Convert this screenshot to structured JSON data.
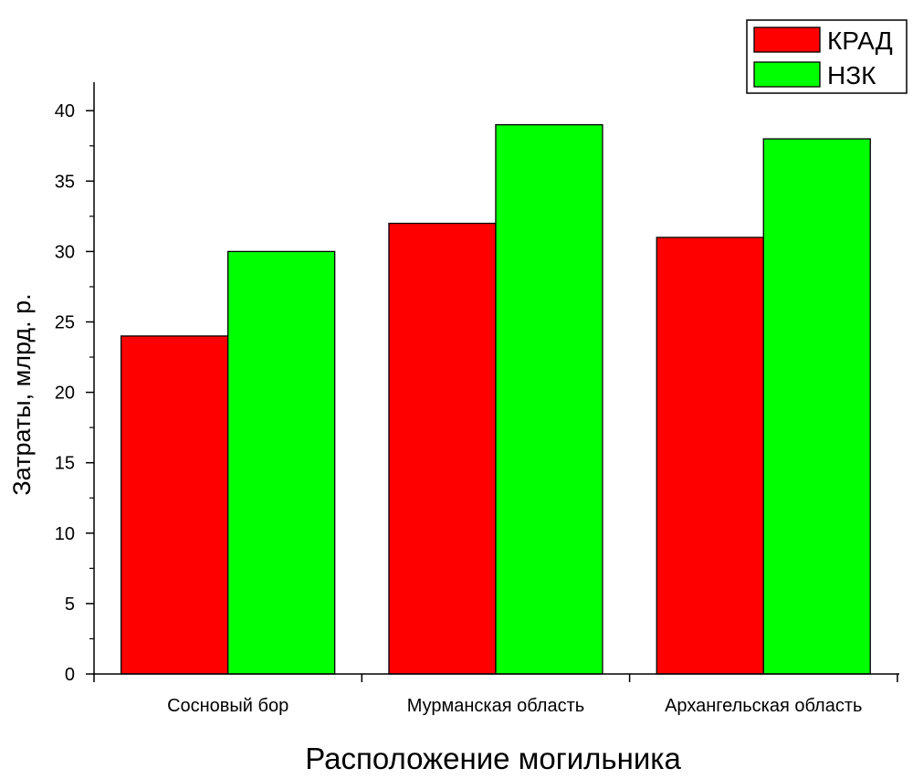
{
  "chart_data": {
    "type": "bar",
    "categories": [
      "Сосновый бор",
      "Мурманская область",
      "Архангельская область"
    ],
    "series": [
      {
        "name": "КРАД",
        "color": "#ff0000",
        "values": [
          24,
          32,
          31
        ]
      },
      {
        "name": "НЗК",
        "color": "#00ff00",
        "values": [
          30,
          39,
          38
        ]
      }
    ],
    "xlabel": "Расположение могильника",
    "ylabel": "Затраты, млрд. р.",
    "ylim": [
      0,
      42
    ],
    "yticks": [
      0,
      5,
      10,
      15,
      20,
      25,
      30,
      35,
      40
    ],
    "grid": false,
    "legend_position": "top-right"
  }
}
